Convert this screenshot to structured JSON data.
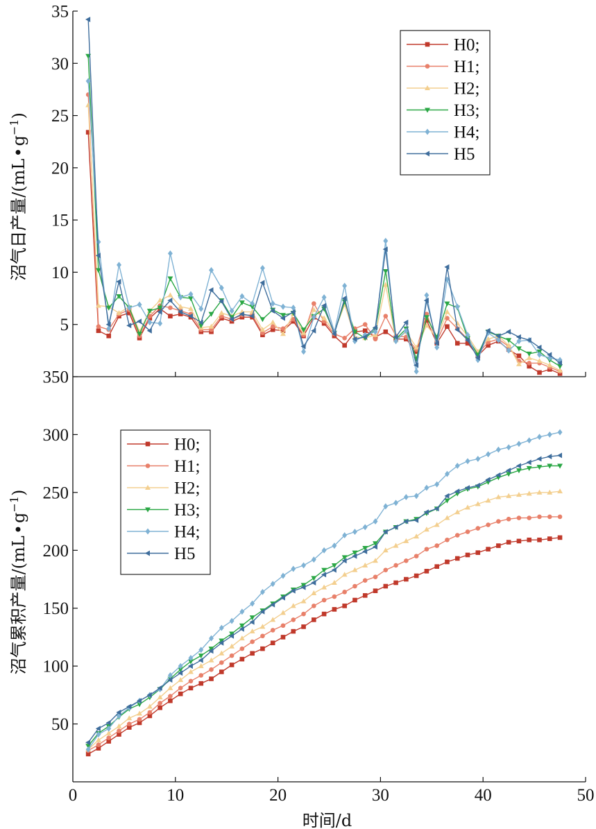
{
  "colors": {
    "H0": "#c0392b",
    "H1": "#e8806a",
    "H2": "#f3cf8f",
    "H3": "#2aa745",
    "H4": "#7fb2d4",
    "H5": "#3e6d9c"
  },
  "chart_data": [
    {
      "type": "line",
      "id": "daily",
      "ylabel": "沼气日产量/(mL·g⁻¹)",
      "ylabel_main": "沼气日产量/(mL",
      "ylabel_dot": "•",
      "ylabel_g": "g",
      "ylabel_sup": "−1",
      "ylabel_close": ")",
      "xlim": [
        0,
        50
      ],
      "ylim": [
        0,
        35
      ],
      "yticks": [
        "5",
        "10",
        "15",
        "20",
        "25",
        "30",
        "35"
      ],
      "legend_position": "top-right",
      "x": [
        1.5,
        2.5,
        3.5,
        4.5,
        5.5,
        6.5,
        7.5,
        8.5,
        9.5,
        10.5,
        11.5,
        12.5,
        13.5,
        14.5,
        15.5,
        16.5,
        17.5,
        18.5,
        19.5,
        20.5,
        21.5,
        22.5,
        23.5,
        24.5,
        25.5,
        26.5,
        27.5,
        28.5,
        29.5,
        30.5,
        31.5,
        32.5,
        33.5,
        34.5,
        35.5,
        36.5,
        37.5,
        38.5,
        39.5,
        40.5,
        41.5,
        42.5,
        43.5,
        44.5,
        45.5,
        46.5,
        47.5
      ],
      "series": [
        {
          "name": "H0;",
          "key": "H0",
          "marker": "square",
          "values": [
            23.4,
            4.4,
            3.9,
            5.8,
            6.1,
            3.7,
            5.6,
            6.5,
            5.8,
            6.0,
            5.7,
            4.3,
            4.3,
            5.6,
            5.3,
            5.7,
            5.7,
            4.0,
            4.5,
            4.4,
            5.3,
            3.9,
            5.7,
            5.1,
            3.9,
            3.0,
            4.3,
            4.4,
            3.8,
            4.3,
            3.6,
            3.6,
            2.4,
            5.4,
            3.2,
            4.8,
            3.2,
            3.2,
            2.0,
            3.0,
            3.4,
            2.6,
            2.0,
            1.0,
            0.4,
            0.7,
            0.3
          ]
        },
        {
          "name": "H1;",
          "key": "H1",
          "marker": "circle",
          "values": [
            27.0,
            4.8,
            4.5,
            6.0,
            6.4,
            3.9,
            5.8,
            6.8,
            6.6,
            6.3,
            6.0,
            4.5,
            4.5,
            5.8,
            5.5,
            5.9,
            5.9,
            4.2,
            4.8,
            4.6,
            5.5,
            4.0,
            7.0,
            5.3,
            4.1,
            3.7,
            4.6,
            5.0,
            3.6,
            5.8,
            3.9,
            3.8,
            2.6,
            6.0,
            3.4,
            5.6,
            4.6,
            3.6,
            2.2,
            3.3,
            3.6,
            2.9,
            1.5,
            1.3,
            1.3,
            0.9,
            0.5
          ]
        },
        {
          "name": "H2;",
          "key": "H2",
          "marker": "triangle-up",
          "values": [
            26.0,
            6.8,
            6.7,
            6.1,
            6.7,
            4.3,
            6.3,
            7.3,
            7.8,
            6.7,
            6.5,
            4.7,
            4.8,
            6.1,
            5.8,
            6.2,
            6.2,
            4.5,
            5.2,
            4.1,
            6.0,
            4.2,
            6.4,
            5.6,
            4.3,
            6.9,
            3.8,
            3.7,
            4.0,
            8.8,
            3.5,
            4.3,
            2.8,
            4.9,
            3.7,
            6.2,
            5.1,
            3.9,
            2.4,
            3.6,
            3.9,
            3.0,
            1.2,
            1.8,
            1.5,
            1.1,
            0.6
          ]
        },
        {
          "name": "H3;",
          "key": "H3",
          "marker": "triangle-down",
          "values": [
            30.7,
            10.2,
            6.6,
            7.7,
            6.6,
            4.1,
            6.3,
            6.6,
            9.4,
            7.6,
            7.5,
            4.9,
            6.0,
            7.3,
            5.7,
            7.1,
            6.7,
            5.5,
            6.4,
            5.9,
            6.1,
            4.5,
            5.8,
            6.5,
            4.2,
            7.2,
            4.3,
            3.7,
            4.5,
            10.1,
            3.6,
            4.6,
            1.7,
            5.7,
            3.8,
            7.0,
            6.6,
            3.7,
            2.1,
            4.3,
            3.9,
            3.5,
            2.7,
            2.2,
            2.4,
            1.6,
            1.0
          ]
        },
        {
          "name": "H4;",
          "key": "H4",
          "marker": "diamond",
          "values": [
            28.3,
            12.9,
            4.6,
            10.7,
            6.6,
            6.9,
            5.2,
            5.1,
            11.8,
            7.6,
            7.9,
            6.5,
            10.2,
            8.5,
            6.3,
            7.7,
            7.0,
            10.4,
            7.0,
            6.7,
            6.6,
            2.4,
            5.7,
            7.6,
            4.3,
            8.7,
            3.4,
            4.0,
            4.3,
            13.0,
            3.4,
            4.4,
            0.5,
            7.8,
            2.8,
            9.3,
            6.7,
            4.0,
            1.6,
            4.2,
            3.5,
            2.5,
            3.4,
            3.5,
            2.1,
            1.8,
            1.6
          ]
        },
        {
          "name": "H5",
          "key": "H5",
          "marker": "triangle-left",
          "values": [
            34.2,
            11.6,
            5.0,
            9.1,
            4.9,
            5.3,
            4.4,
            6.2,
            7.3,
            6.2,
            5.8,
            5.2,
            8.3,
            7.2,
            5.5,
            6.0,
            5.8,
            9.0,
            6.3,
            5.6,
            6.2,
            2.9,
            4.4,
            6.8,
            4.1,
            7.5,
            3.6,
            3.8,
            4.7,
            12.2,
            3.8,
            5.2,
            1.1,
            7.3,
            3.2,
            10.5,
            4.5,
            3.5,
            1.8,
            4.4,
            3.9,
            4.3,
            3.8,
            3.5,
            2.8,
            2.1,
            1.3
          ]
        }
      ]
    },
    {
      "type": "line",
      "id": "cumulative",
      "ylabel": "沼气累积产量/(mL·g⁻¹)",
      "ylabel_main": "沼气累积产量/(mL",
      "ylabel_dot": "•",
      "ylabel_g": "g",
      "ylabel_sup": "−1",
      "ylabel_close": ")",
      "xlabel": "时间/d",
      "xlim": [
        0,
        50
      ],
      "ylim": [
        0,
        350
      ],
      "yticks": [
        "50",
        "100",
        "150",
        "200",
        "250",
        "300",
        "350"
      ],
      "xticks": [
        "0",
        "10",
        "20",
        "30",
        "40",
        "50"
      ],
      "legend_position": "top-left",
      "x": [
        1.5,
        2.5,
        3.5,
        4.5,
        5.5,
        6.5,
        7.5,
        8.5,
        9.5,
        10.5,
        11.5,
        12.5,
        13.5,
        14.5,
        15.5,
        16.5,
        17.5,
        18.5,
        19.5,
        20.5,
        21.5,
        22.5,
        23.5,
        24.5,
        25.5,
        26.5,
        27.5,
        28.5,
        29.5,
        30.5,
        31.5,
        32.5,
        33.5,
        34.5,
        35.5,
        36.5,
        37.5,
        38.5,
        39.5,
        40.5,
        41.5,
        42.5,
        43.5,
        44.5,
        45.5,
        46.5,
        47.5
      ],
      "series": [
        {
          "name": "H0;",
          "key": "H0",
          "marker": "square",
          "values": [
            24,
            29,
            35,
            41,
            47,
            51,
            57,
            64,
            70,
            76,
            81,
            85,
            89,
            95,
            101,
            106,
            111,
            115,
            120,
            125,
            130,
            134,
            140,
            145,
            149,
            152,
            157,
            161,
            165,
            169,
            172,
            175,
            178,
            182,
            186,
            190,
            193,
            196,
            198,
            201,
            204,
            207,
            208,
            209,
            209,
            210,
            211
          ]
        },
        {
          "name": "H1;",
          "key": "H1",
          "marker": "circle",
          "values": [
            27,
            32,
            38,
            44,
            50,
            54,
            60,
            68,
            74,
            81,
            87,
            92,
            97,
            103,
            109,
            115,
            121,
            126,
            131,
            135,
            140,
            145,
            152,
            157,
            160,
            164,
            169,
            174,
            177,
            183,
            187,
            191,
            195,
            201,
            204,
            209,
            213,
            216,
            219,
            222,
            225,
            227,
            228,
            228,
            229,
            229,
            229
          ]
        },
        {
          "name": "H2;",
          "key": "H2",
          "marker": "triangle-up",
          "values": [
            28,
            36,
            42,
            48,
            55,
            59,
            65,
            73,
            81,
            88,
            95,
            100,
            105,
            111,
            117,
            124,
            130,
            134,
            140,
            146,
            152,
            156,
            163,
            168,
            172,
            179,
            183,
            187,
            191,
            200,
            204,
            208,
            212,
            218,
            222,
            228,
            233,
            237,
            240,
            243,
            246,
            247,
            248,
            249,
            250,
            250,
            251
          ]
        },
        {
          "name": "H3;",
          "key": "H3",
          "marker": "triangle-down",
          "values": [
            31,
            42,
            48,
            56,
            63,
            67,
            73,
            80,
            89,
            97,
            104,
            109,
            115,
            122,
            128,
            135,
            142,
            148,
            154,
            160,
            166,
            170,
            176,
            183,
            187,
            194,
            198,
            202,
            206,
            216,
            220,
            225,
            227,
            232,
            236,
            243,
            249,
            253,
            255,
            259,
            263,
            266,
            269,
            271,
            272,
            273,
            273
          ]
        },
        {
          "name": "H4;",
          "key": "H4",
          "marker": "diamond",
          "values": [
            28,
            41,
            46,
            57,
            64,
            70,
            75,
            80,
            92,
            100,
            107,
            114,
            124,
            133,
            139,
            147,
            154,
            164,
            171,
            178,
            184,
            187,
            192,
            200,
            204,
            213,
            216,
            220,
            225,
            238,
            241,
            246,
            247,
            254,
            257,
            266,
            273,
            277,
            279,
            283,
            287,
            289,
            292,
            295,
            298,
            300,
            302
          ]
        },
        {
          "name": "H5",
          "key": "H5",
          "marker": "triangle-left",
          "values": [
            34,
            46,
            51,
            60,
            65,
            70,
            75,
            81,
            88,
            94,
            100,
            105,
            113,
            120,
            126,
            132,
            138,
            147,
            153,
            159,
            165,
            168,
            172,
            179,
            183,
            191,
            195,
            199,
            203,
            216,
            220,
            225,
            226,
            233,
            236,
            247,
            251,
            254,
            256,
            261,
            265,
            269,
            273,
            276,
            279,
            281,
            282
          ]
        }
      ]
    }
  ]
}
